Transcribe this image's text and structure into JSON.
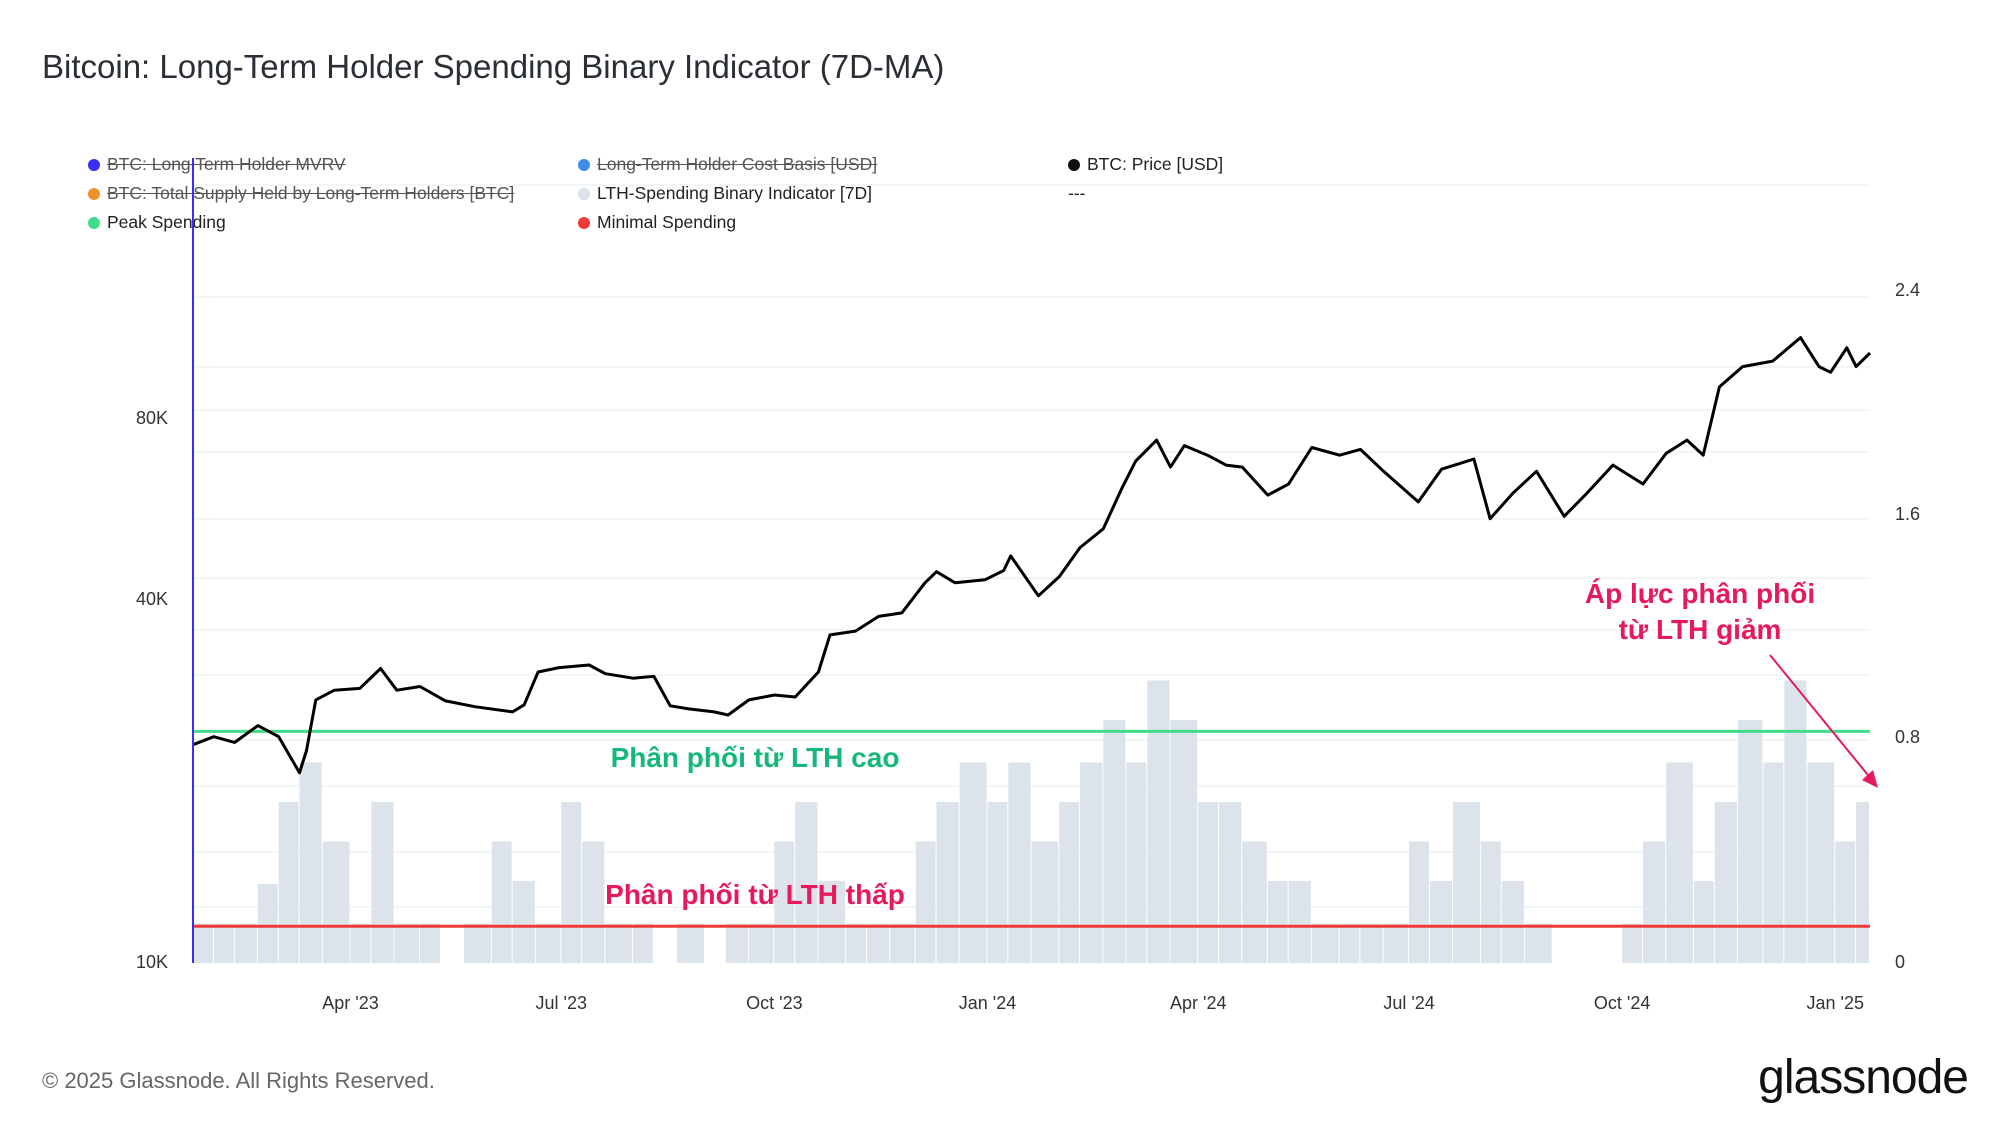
{
  "title": "Bitcoin: Long-Term Holder Spending Binary Indicator (7D-MA)",
  "legend": [
    {
      "label": "BTC: Long Term Holder MVRV",
      "color": "#3b2df2",
      "active": false,
      "col": 0,
      "row": 0
    },
    {
      "label": "Long-Term Holder Cost Basis [USD]",
      "color": "#3d8ce8",
      "active": false,
      "col": 1,
      "row": 0
    },
    {
      "label": "BTC: Price [USD]",
      "color": "#111111",
      "active": true,
      "col": 2,
      "row": 0
    },
    {
      "label": "BTC: Total Supply Held by Long-Term Holders [BTC]",
      "color": "#f0922a",
      "active": false,
      "col": 0,
      "row": 1
    },
    {
      "label": "LTH-Spending Binary Indicator [7D]",
      "color": "#dde3ea",
      "active": true,
      "col": 1,
      "row": 1
    },
    {
      "label": "---",
      "color": "",
      "active": true,
      "col": 2,
      "row": 1
    },
    {
      "label": "Peak Spending",
      "color": "#3fdc8a",
      "active": true,
      "col": 0,
      "row": 2
    },
    {
      "label": "Minimal Spending",
      "color": "#f03a3a",
      "active": true,
      "col": 1,
      "row": 2
    }
  ],
  "chart_data": {
    "type": "line",
    "x_range": [
      "2023-01-23",
      "2025-01-16"
    ],
    "x_ticks": [
      "Apr '23",
      "Jul '23",
      "Oct '23",
      "Jan '24",
      "Apr '24",
      "Jul '24",
      "Oct '24",
      "Jan '25"
    ],
    "y_left": {
      "scale": "log",
      "ticks": [
        "10K",
        "40K",
        "80K"
      ],
      "range": [
        10000,
        190000
      ]
    },
    "y_right": {
      "ticks": [
        "0",
        "0.8",
        "1.6",
        "2.4"
      ],
      "range": [
        0,
        2.4
      ]
    },
    "series": [
      {
        "name": "BTC: Price [USD]",
        "axis": "left",
        "color": "#000000",
        "x": [
          "2023-01-23",
          "2023-02-01",
          "2023-02-10",
          "2023-02-20",
          "2023-03-01",
          "2023-03-10",
          "2023-03-13",
          "2023-03-17",
          "2023-03-25",
          "2023-04-05",
          "2023-04-14",
          "2023-04-21",
          "2023-05-01",
          "2023-05-12",
          "2023-05-25",
          "2023-06-10",
          "2023-06-15",
          "2023-06-21",
          "2023-06-30",
          "2023-07-13",
          "2023-07-20",
          "2023-08-01",
          "2023-08-10",
          "2023-08-17",
          "2023-08-25",
          "2023-09-05",
          "2023-09-11",
          "2023-09-20",
          "2023-10-01",
          "2023-10-10",
          "2023-10-20",
          "2023-10-25",
          "2023-11-05",
          "2023-11-15",
          "2023-11-25",
          "2023-12-05",
          "2023-12-10",
          "2023-12-18",
          "2023-12-31",
          "2024-01-08",
          "2024-01-11",
          "2024-01-23",
          "2024-02-01",
          "2024-02-10",
          "2024-02-20",
          "2024-02-28",
          "2024-03-05",
          "2024-03-14",
          "2024-03-20",
          "2024-03-26",
          "2024-04-05",
          "2024-04-13",
          "2024-04-20",
          "2024-05-01",
          "2024-05-10",
          "2024-05-20",
          "2024-06-01",
          "2024-06-10",
          "2024-06-20",
          "2024-07-05",
          "2024-07-15",
          "2024-07-29",
          "2024-08-05",
          "2024-08-15",
          "2024-08-25",
          "2024-09-06",
          "2024-09-15",
          "2024-09-27",
          "2024-10-10",
          "2024-10-20",
          "2024-10-29",
          "2024-11-05",
          "2024-11-08",
          "2024-11-12",
          "2024-11-22",
          "2024-12-05",
          "2024-12-17",
          "2024-12-25",
          "2024-12-30",
          "2025-01-06",
          "2025-01-10",
          "2025-01-16"
        ],
        "values": [
          22800,
          23500,
          23000,
          24500,
          23500,
          20500,
          22300,
          27000,
          28000,
          28200,
          30400,
          28000,
          28400,
          26900,
          26300,
          25800,
          26500,
          30000,
          30500,
          30800,
          29800,
          29300,
          29500,
          26400,
          26100,
          25800,
          25500,
          27000,
          27500,
          27300,
          30000,
          34500,
          35000,
          37000,
          37500,
          42000,
          43800,
          42000,
          42500,
          44000,
          46500,
          40000,
          43000,
          48000,
          51500,
          60000,
          66500,
          72000,
          65000,
          70500,
          68000,
          65500,
          65000,
          58500,
          61000,
          70000,
          68000,
          69500,
          64000,
          57000,
          64500,
          67000,
          53500,
          59000,
          64000,
          54000,
          58500,
          65500,
          61000,
          68500,
          72000,
          68000,
          76000,
          88000,
          95000,
          97000,
          106000,
          95000,
          93000,
          102000,
          95000,
          100000
        ]
      },
      {
        "name": "LTH-Spending Binary Indicator [7D]",
        "axis": "right",
        "type": "bar",
        "color": "#dde3ea",
        "x": [
          "2023-01-23",
          "2023-02-01",
          "2023-02-10",
          "2023-02-20",
          "2023-03-01",
          "2023-03-10",
          "2023-03-20",
          "2023-04-01",
          "2023-04-10",
          "2023-04-20",
          "2023-05-01",
          "2023-05-10",
          "2023-05-20",
          "2023-06-01",
          "2023-06-10",
          "2023-06-20",
          "2023-07-01",
          "2023-07-10",
          "2023-07-20",
          "2023-08-01",
          "2023-08-10",
          "2023-08-20",
          "2023-09-01",
          "2023-09-10",
          "2023-09-20",
          "2023-10-01",
          "2023-10-10",
          "2023-10-20",
          "2023-11-01",
          "2023-11-10",
          "2023-11-20",
          "2023-12-01",
          "2023-12-10",
          "2023-12-20",
          "2024-01-01",
          "2024-01-10",
          "2024-01-20",
          "2024-02-01",
          "2024-02-10",
          "2024-02-20",
          "2024-03-01",
          "2024-03-10",
          "2024-03-20",
          "2024-04-01",
          "2024-04-10",
          "2024-04-20",
          "2024-05-01",
          "2024-05-10",
          "2024-05-20",
          "2024-06-01",
          "2024-06-10",
          "2024-06-20",
          "2024-07-01",
          "2024-07-10",
          "2024-07-20",
          "2024-08-01",
          "2024-08-10",
          "2024-08-20",
          "2024-09-01",
          "2024-09-10",
          "2024-09-20",
          "2024-10-01",
          "2024-10-10",
          "2024-10-20",
          "2024-11-01",
          "2024-11-10",
          "2024-11-20",
          "2024-12-01",
          "2024-12-10",
          "2024-12-20",
          "2025-01-01",
          "2025-01-10"
        ],
        "values": [
          0.14,
          0.14,
          0.14,
          0.28,
          0.57,
          0.71,
          0.43,
          0.14,
          0.57,
          0.14,
          0.14,
          0.0,
          0.14,
          0.43,
          0.29,
          0.14,
          0.57,
          0.43,
          0.14,
          0.14,
          0.0,
          0.14,
          0.0,
          0.14,
          0.14,
          0.43,
          0.57,
          0.29,
          0.14,
          0.14,
          0.14,
          0.43,
          0.57,
          0.71,
          0.57,
          0.71,
          0.43,
          0.57,
          0.71,
          0.86,
          0.71,
          1.0,
          0.86,
          0.57,
          0.57,
          0.43,
          0.29,
          0.29,
          0.14,
          0.14,
          0.14,
          0.14,
          0.43,
          0.29,
          0.57,
          0.43,
          0.29,
          0.14,
          0.0,
          0.0,
          0.0,
          0.14,
          0.43,
          0.71,
          0.29,
          0.57,
          0.86,
          0.71,
          1.0,
          0.71,
          0.43,
          0.57
        ]
      }
    ],
    "reference_lines": [
      {
        "name": "Peak Spending",
        "value": 0.82,
        "color": "#3fdc8a",
        "axis": "right"
      },
      {
        "name": "Minimal Spending",
        "value": 0.13,
        "color": "#f03a3a",
        "axis": "right"
      }
    ],
    "annotations": [
      {
        "text": "Phân phối từ LTH cao",
        "color": "#15b87a"
      },
      {
        "text": "Phân phối từ LTH thấp",
        "color": "#e8195a"
      },
      {
        "text_lines": [
          "Áp lực phân phối",
          "từ LTH giảm"
        ],
        "color": "#e8195a"
      }
    ]
  },
  "footer": "© 2025 Glassnode. All Rights Reserved.",
  "logo": "glassnode"
}
